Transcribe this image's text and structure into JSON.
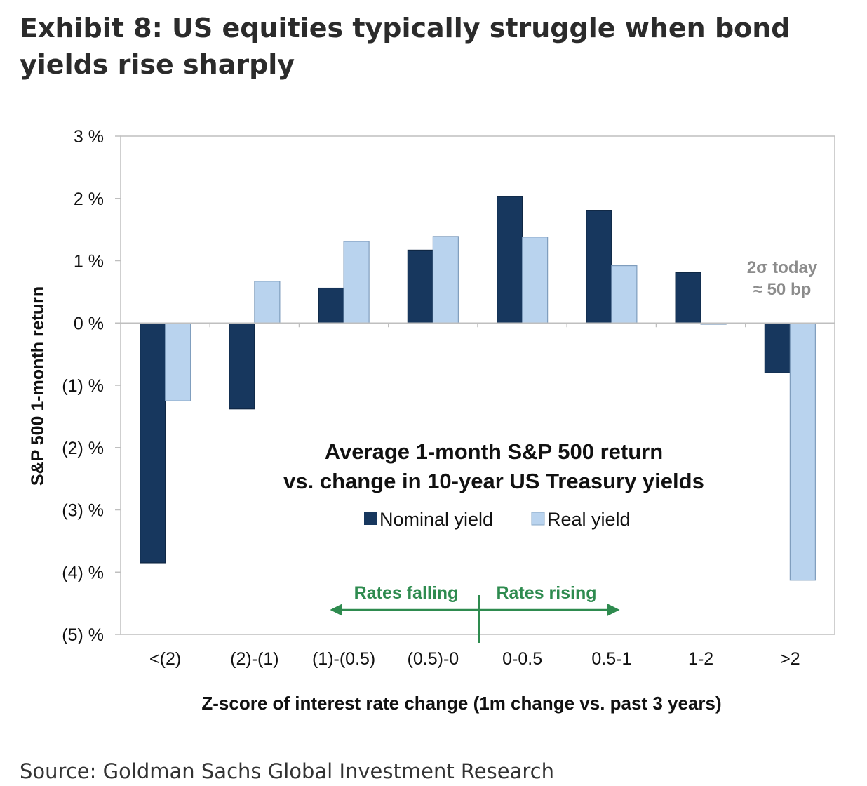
{
  "exhibit": {
    "title": "Exhibit 8: US equities typically struggle when bond yields rise sharply",
    "source": "Source: Goldman Sachs Global Investment Research"
  },
  "chart_data": {
    "type": "bar",
    "title": "Average 1-month S&P 500 return",
    "subtitle": "vs. change in 10-year US Treasury yields",
    "xlabel": "Z-score of interest rate change (1m change vs. past 3 years)",
    "ylabel": "S&P 500 1-month return",
    "ylim": [
      -5,
      3
    ],
    "yticks": [
      3,
      2,
      1,
      0,
      -1,
      -2,
      -3,
      -4,
      -5
    ],
    "ytick_labels": [
      "3 %",
      "2 %",
      "1 %",
      "0 %",
      "(1) %",
      "(2) %",
      "(3) %",
      "(4) %",
      "(5) %"
    ],
    "categories": [
      "<(2)",
      "(2)-(1)",
      "(1)-(0.5)",
      "(0.5)-0",
      "0-0.5",
      "0.5-1",
      "1-2",
      ">2"
    ],
    "series": [
      {
        "name": "Nominal yield",
        "color": "#17375e",
        "values": [
          -3.85,
          -1.38,
          0.56,
          1.17,
          2.03,
          1.81,
          0.81,
          -0.8
        ]
      },
      {
        "name": "Real yield",
        "color": "#b9d3ee",
        "values": [
          -1.25,
          0.67,
          1.31,
          1.39,
          1.38,
          0.92,
          -0.02,
          -4.13
        ]
      }
    ],
    "legend_position": "center",
    "grid": false,
    "annotations": {
      "today_line1": "2σ today",
      "today_line2": "≈ 50 bp",
      "rates_falling": "Rates falling",
      "rates_rising": "Rates rising",
      "arrow_color": "#2e8b4f"
    }
  }
}
